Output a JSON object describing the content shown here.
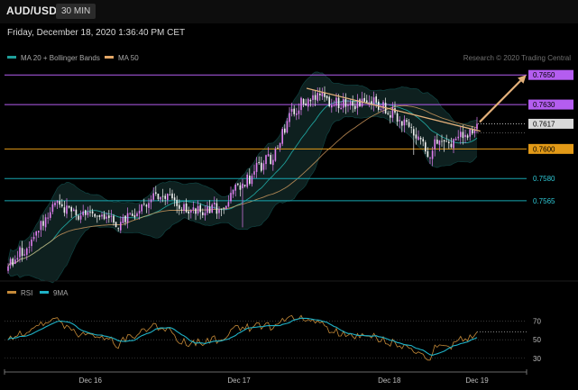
{
  "header": {
    "symbol": "AUD/USD",
    "timeframe": "30 MIN",
    "datetime": "Friday, December 18, 2020 1:36:40 PM CET"
  },
  "credit": "Research © 2020 Trading Central",
  "colors": {
    "bollinger": "#1f9f9a",
    "ma50": "#e3a766",
    "resistance": "#b45df0",
    "support_orange": "#e39a17",
    "support_teal": "#17a6b0",
    "arrow": "#e3b07a",
    "rsi": "#c58a38",
    "rsi_ma": "#1fb2c7",
    "bull_candle": "#e07ef0",
    "bear_candle": "#f2f2f2"
  },
  "chart_data": [
    {
      "type": "candlestick",
      "legend": [
        {
          "name": "MA 20 + Bollinger Bands",
          "color": "#1f9f9a"
        },
        {
          "name": "MA 50",
          "color": "#e3a766"
        }
      ],
      "levels": [
        {
          "value": "0.7650",
          "kind": "resistance",
          "color": "#b45df0",
          "label_bg": "#b45df0",
          "label_fg": "#000000"
        },
        {
          "value": "0.7630",
          "kind": "resistance",
          "color": "#b45df0",
          "label_bg": "#b45df0",
          "label_fg": "#000000"
        },
        {
          "value": "0.7617",
          "kind": "last",
          "color": "#cfcfcf",
          "label_bg": "#d9d9d9",
          "label_fg": "#000000"
        },
        {
          "value": "0.7600",
          "kind": "support",
          "color": "#e39a17",
          "label_bg": "#e39a17",
          "label_fg": "#000000"
        },
        {
          "value": "0.7580",
          "kind": "support",
          "color": "#17a6b0",
          "label_bg": "",
          "label_fg": "#2ec7d4"
        },
        {
          "value": "0.7565",
          "kind": "support",
          "color": "#17a6b0",
          "label_bg": "",
          "label_fg": "#2ec7d4"
        }
      ],
      "x_ticks": [
        "Dec 16",
        "Dec 17",
        "Dec 18",
        "Dec 19"
      ],
      "ylim": [
        0.7515,
        0.7655
      ],
      "trendline": {
        "from": [
          "Dec 17",
          0.7641
        ],
        "to": [
          "Dec 18",
          0.7612
        ]
      },
      "path": [
        [
          0,
          0.7522
        ],
        [
          8,
          0.7534
        ],
        [
          14,
          0.7549
        ],
        [
          20,
          0.7562
        ],
        [
          30,
          0.7556
        ],
        [
          40,
          0.7557
        ],
        [
          48,
          0.7549
        ],
        [
          55,
          0.7559
        ],
        [
          62,
          0.7567
        ],
        [
          70,
          0.7565
        ],
        [
          75,
          0.7561
        ],
        [
          78,
          0.7556
        ],
        [
          82,
          0.7559
        ],
        [
          92,
          0.7561
        ],
        [
          96,
          0.7573
        ],
        [
          100,
          0.7574
        ],
        [
          106,
          0.7588
        ],
        [
          112,
          0.7593
        ],
        [
          120,
          0.7622
        ],
        [
          126,
          0.7633
        ],
        [
          132,
          0.7638
        ],
        [
          138,
          0.7632
        ],
        [
          146,
          0.763
        ],
        [
          156,
          0.7633
        ],
        [
          164,
          0.7624
        ],
        [
          170,
          0.7615
        ],
        [
          176,
          0.7605
        ],
        [
          180,
          0.7596
        ],
        [
          184,
          0.7608
        ],
        [
          188,
          0.76
        ],
        [
          192,
          0.7606
        ],
        [
          196,
          0.7612
        ],
        [
          200,
          0.7617
        ]
      ],
      "projection": {
        "from": [
          200,
          0.7617
        ],
        "to": [
          221,
          0.765
        ]
      }
    },
    {
      "type": "line",
      "legend": [
        {
          "name": "RSI",
          "color": "#c58a38"
        },
        {
          "name": "9MA",
          "color": "#1fb2c7"
        }
      ],
      "levels": [
        "70",
        "50",
        "30"
      ],
      "ylim": [
        22,
        88
      ]
    }
  ]
}
